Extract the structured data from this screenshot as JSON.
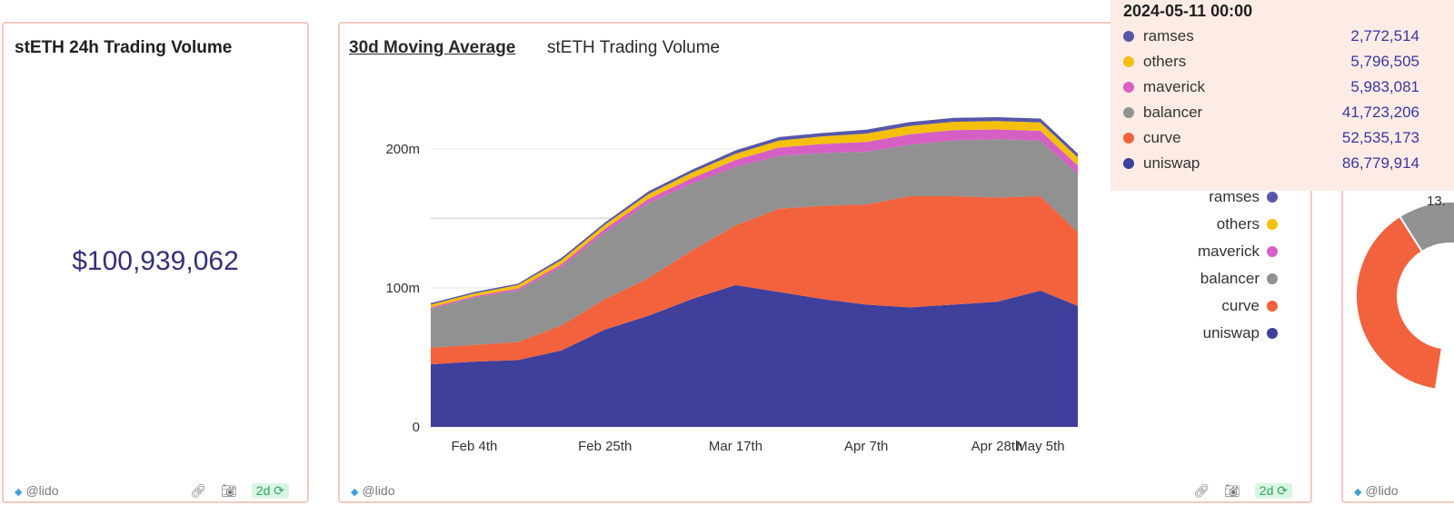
{
  "panel_volume": {
    "title": "stETH 24h Trading Volume",
    "value": "$100,939,062",
    "author": "@lido",
    "age_badge": "2d"
  },
  "panel_chart": {
    "tab_active": "30d Moving Average",
    "tab_other": "stETH Trading Volume",
    "author": "@lido",
    "age_badge": "2d"
  },
  "panel_donut": {
    "author": "@lido",
    "slice_label": "13."
  },
  "tooltip": {
    "title": "2024-05-11 00:00",
    "rows": [
      {
        "name": "ramses",
        "value": "2,772,514",
        "color": "#5757a9"
      },
      {
        "name": "others",
        "value": "5,796,505",
        "color": "#f4c00c"
      },
      {
        "name": "maverick",
        "value": "5,983,081",
        "color": "#d65fc4"
      },
      {
        "name": "balancer",
        "value": "41,723,206",
        "color": "#919191"
      },
      {
        "name": "curve",
        "value": "52,535,173",
        "color": "#f2623d"
      },
      {
        "name": "uniswap",
        "value": "86,779,914",
        "color": "#3f3f9c"
      }
    ]
  },
  "legend": [
    {
      "name": "ramses",
      "color": "#5757a9"
    },
    {
      "name": "others",
      "color": "#f4c00c"
    },
    {
      "name": "maverick",
      "color": "#d65fc4"
    },
    {
      "name": "balancer",
      "color": "#919191"
    },
    {
      "name": "curve",
      "color": "#f2623d"
    },
    {
      "name": "uniswap",
      "color": "#3f3f9c"
    }
  ],
  "chart_data": {
    "type": "area",
    "stacked": true,
    "x": [
      "2024-01-28",
      "2024-02-04",
      "2024-02-11",
      "2024-02-18",
      "2024-02-25",
      "2024-03-03",
      "2024-03-10",
      "2024-03-17",
      "2024-03-24",
      "2024-03-31",
      "2024-04-07",
      "2024-04-14",
      "2024-04-21",
      "2024-04-28",
      "2024-05-05",
      "2024-05-11"
    ],
    "x_ticks": [
      "Feb 4th",
      "Feb 25th",
      "Mar 17th",
      "Apr 7th",
      "Apr 28th",
      "May 5th"
    ],
    "x_tick_dates": [
      "2024-02-04",
      "2024-02-25",
      "2024-03-17",
      "2024-04-07",
      "2024-04-28",
      "2024-05-05"
    ],
    "y_ticks": [
      "0",
      "100m",
      "200m"
    ],
    "y_tick_values": [
      0,
      100000000,
      200000000
    ],
    "ylim": [
      0,
      230000000
    ],
    "grid": true,
    "legend_position": "right",
    "series": [
      {
        "name": "uniswap",
        "color": "#3f3f9c",
        "values": [
          45000000,
          47000000,
          48000000,
          55000000,
          70000000,
          80000000,
          92000000,
          102000000,
          97000000,
          92000000,
          88000000,
          86000000,
          88000000,
          90000000,
          98000000,
          87000000
        ]
      },
      {
        "name": "curve",
        "color": "#f2623d",
        "values": [
          12000000,
          12000000,
          13000000,
          18000000,
          22000000,
          27000000,
          35000000,
          43000000,
          60000000,
          67000000,
          72000000,
          80000000,
          78000000,
          75000000,
          68000000,
          53000000
        ]
      },
      {
        "name": "balancer",
        "color": "#919191",
        "values": [
          28000000,
          34000000,
          37000000,
          42000000,
          48000000,
          54000000,
          48000000,
          42000000,
          38000000,
          38000000,
          38000000,
          37000000,
          40000000,
          42000000,
          40000000,
          42000000
        ]
      },
      {
        "name": "maverick",
        "color": "#d65fc4",
        "values": [
          1000000,
          1000000,
          1500000,
          2000000,
          2500000,
          3000000,
          4000000,
          5000000,
          6000000,
          6500000,
          7000000,
          7500000,
          7500000,
          7000000,
          7000000,
          6000000
        ]
      },
      {
        "name": "others",
        "color": "#f4c00c",
        "values": [
          2000000,
          2000000,
          2500000,
          3000000,
          3000000,
          3500000,
          4000000,
          4500000,
          5000000,
          5500000,
          6000000,
          6000000,
          6000000,
          6000000,
          6000000,
          5800000
        ]
      },
      {
        "name": "ramses",
        "color": "#5757a9",
        "values": [
          1000000,
          1000000,
          1000000,
          1500000,
          1500000,
          2000000,
          2000000,
          2500000,
          2500000,
          2500000,
          2800000,
          2800000,
          2800000,
          2800000,
          2800000,
          2800000
        ]
      }
    ]
  },
  "donut_data": {
    "type": "pie",
    "visible_slices": [
      {
        "color": "#f2623d"
      },
      {
        "color": "#919191"
      }
    ]
  }
}
